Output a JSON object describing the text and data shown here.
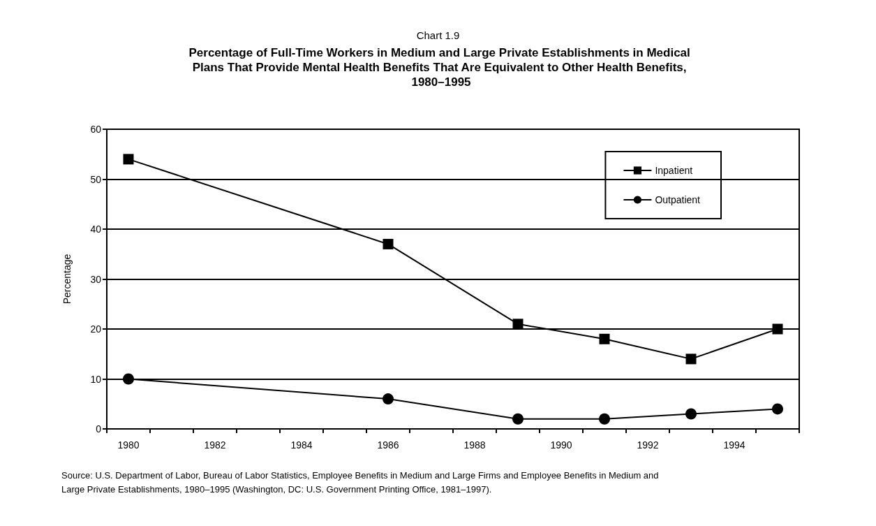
{
  "chart_data": {
    "type": "line",
    "subtitle": "Chart 1.9",
    "title": "Percentage of Full-Time Workers in Medium and Large Private Establishments in Medical Plans That Provide Mental Health Benefits That Are Equivalent to Other Health Benefits, 1980–1995",
    "ylabel": "Percentage",
    "categories": [
      "1980",
      null,
      "1982",
      null,
      "1984",
      null,
      "1986",
      null,
      "1988",
      null,
      "1990",
      null,
      "1992",
      null,
      "1994",
      null
    ],
    "series": [
      {
        "name": "Inpatient",
        "color": "#000000",
        "marker": "square",
        "values": [
          54,
          null,
          null,
          null,
          null,
          null,
          37,
          null,
          null,
          21,
          null,
          18,
          null,
          14,
          null,
          20
        ]
      },
      {
        "name": "Outpatient",
        "color": "#000000",
        "marker": "circle",
        "values": [
          10,
          null,
          null,
          null,
          null,
          null,
          6,
          null,
          null,
          2,
          null,
          2,
          null,
          3,
          null,
          4
        ]
      }
    ],
    "ylim": [
      0,
      60
    ],
    "yticks": [
      0,
      10,
      20,
      30,
      40,
      50,
      60
    ],
    "grid": "y",
    "legend": "top right",
    "line_style": "solid",
    "annotations": [
      "Source: U.S. Department of Labor, Bureau of Labor Statistics, Employee Benefits in Medium and Large Firms and Employee Benefits in Medium and Large Private Establishments, 1980–1995 (Washington, DC: U.S. Government Printing Office, 1981–1997)."
    ]
  }
}
